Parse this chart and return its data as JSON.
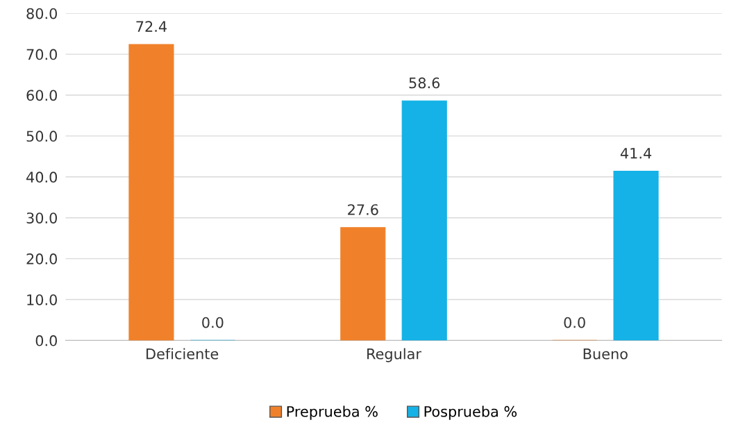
{
  "chart_data": {
    "type": "bar",
    "categories": [
      "Deficiente",
      "Regular",
      "Bueno"
    ],
    "series": [
      {
        "name": "Preprueba %",
        "color": "#f0812a",
        "values": [
          72.4,
          27.6,
          0.0
        ],
        "value_labels": [
          "72.4",
          "27.6",
          "0.0"
        ]
      },
      {
        "name": "Posprueba %",
        "color": "#14b2e6",
        "values": [
          0.0,
          58.6,
          41.4
        ],
        "value_labels": [
          "0.0",
          "58.6",
          "41.4"
        ]
      }
    ],
    "ylim": [
      0,
      80
    ],
    "yticks": [
      {
        "value": 0,
        "label": "0.0"
      },
      {
        "value": 10,
        "label": "10.0"
      },
      {
        "value": 20,
        "label": "20.0"
      },
      {
        "value": 30,
        "label": "30.0"
      },
      {
        "value": 40,
        "label": "40.0"
      },
      {
        "value": 50,
        "label": "50.0"
      },
      {
        "value": 60,
        "label": "60.0"
      },
      {
        "value": 70,
        "label": "70.0"
      },
      {
        "value": 80,
        "label": "80.0"
      }
    ],
    "grid": "y",
    "legend": "bottom"
  }
}
